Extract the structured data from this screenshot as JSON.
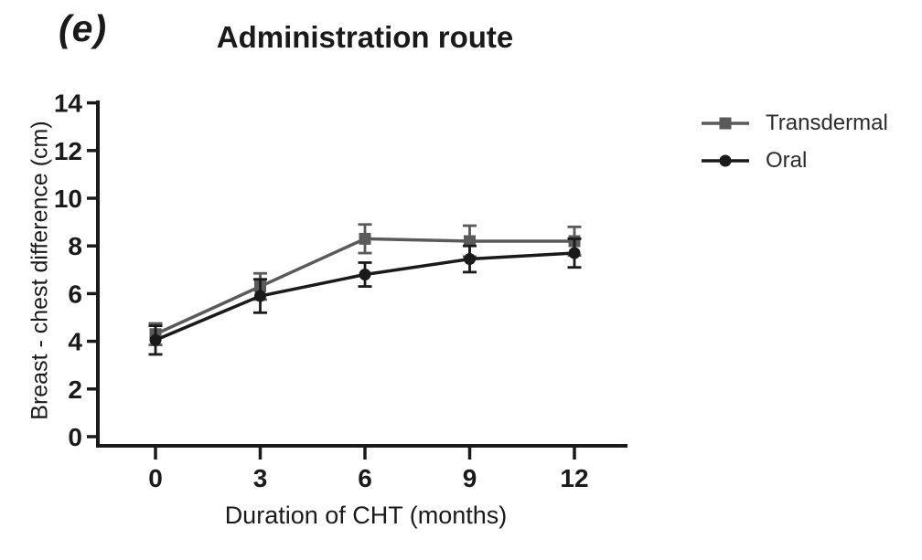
{
  "panel_label": "(e)",
  "title": "Administration route",
  "axes": {
    "xlabel": "Duration of CHT (months)",
    "ylabel": "Breast - chest difference (cm)"
  },
  "colors": {
    "axis": "#1a1a1a",
    "transdermal": "#5a5a5a",
    "oral": "#1a1a1a"
  },
  "legend": {
    "items": [
      {
        "label": "Transdermal",
        "marker": "square",
        "color": "#5a5a5a"
      },
      {
        "label": "Oral",
        "marker": "circle",
        "color": "#1a1a1a"
      }
    ]
  },
  "chart_data": {
    "type": "line",
    "title": "Administration route",
    "xlabel": "Duration of CHT (months)",
    "ylabel": "Breast - chest difference (cm)",
    "x": [
      0,
      3,
      6,
      9,
      12
    ],
    "xticks": [
      0,
      3,
      6,
      9,
      12
    ],
    "yticks": [
      0,
      2,
      4,
      6,
      8,
      10,
      12,
      14
    ],
    "xlim": [
      0,
      12
    ],
    "ylim": [
      0,
      14
    ],
    "grid": false,
    "legend_position": "right",
    "error_bars": true,
    "series": [
      {
        "name": "Transdermal",
        "marker": "square",
        "color": "#5a5a5a",
        "values": [
          4.3,
          6.3,
          8.3,
          8.2,
          8.2
        ],
        "errors": [
          0.45,
          0.55,
          0.6,
          0.65,
          0.6
        ]
      },
      {
        "name": "Oral",
        "marker": "circle",
        "color": "#1a1a1a",
        "values": [
          4.05,
          5.9,
          6.8,
          7.45,
          7.7
        ],
        "errors": [
          0.6,
          0.7,
          0.5,
          0.55,
          0.6
        ]
      }
    ]
  }
}
